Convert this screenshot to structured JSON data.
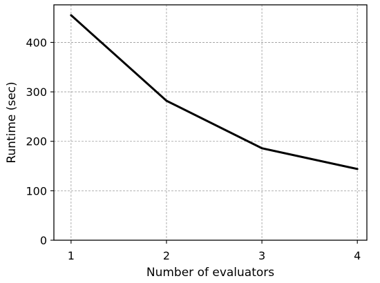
{
  "chart_data": {
    "type": "line",
    "title": "",
    "xlabel": "Number of evaluators",
    "ylabel": "Runtime (sec)",
    "x": [
      1,
      2,
      3,
      4
    ],
    "xticks": [
      "1",
      "2",
      "3",
      "4"
    ],
    "yticks": [
      "0",
      "100",
      "200",
      "300",
      "400"
    ],
    "xlim": [
      0.82,
      4.1
    ],
    "ylim": [
      0,
      476
    ],
    "grid": true,
    "series": [
      {
        "values": [
          455,
          282,
          186,
          144
        ],
        "color": "#000000"
      }
    ]
  }
}
